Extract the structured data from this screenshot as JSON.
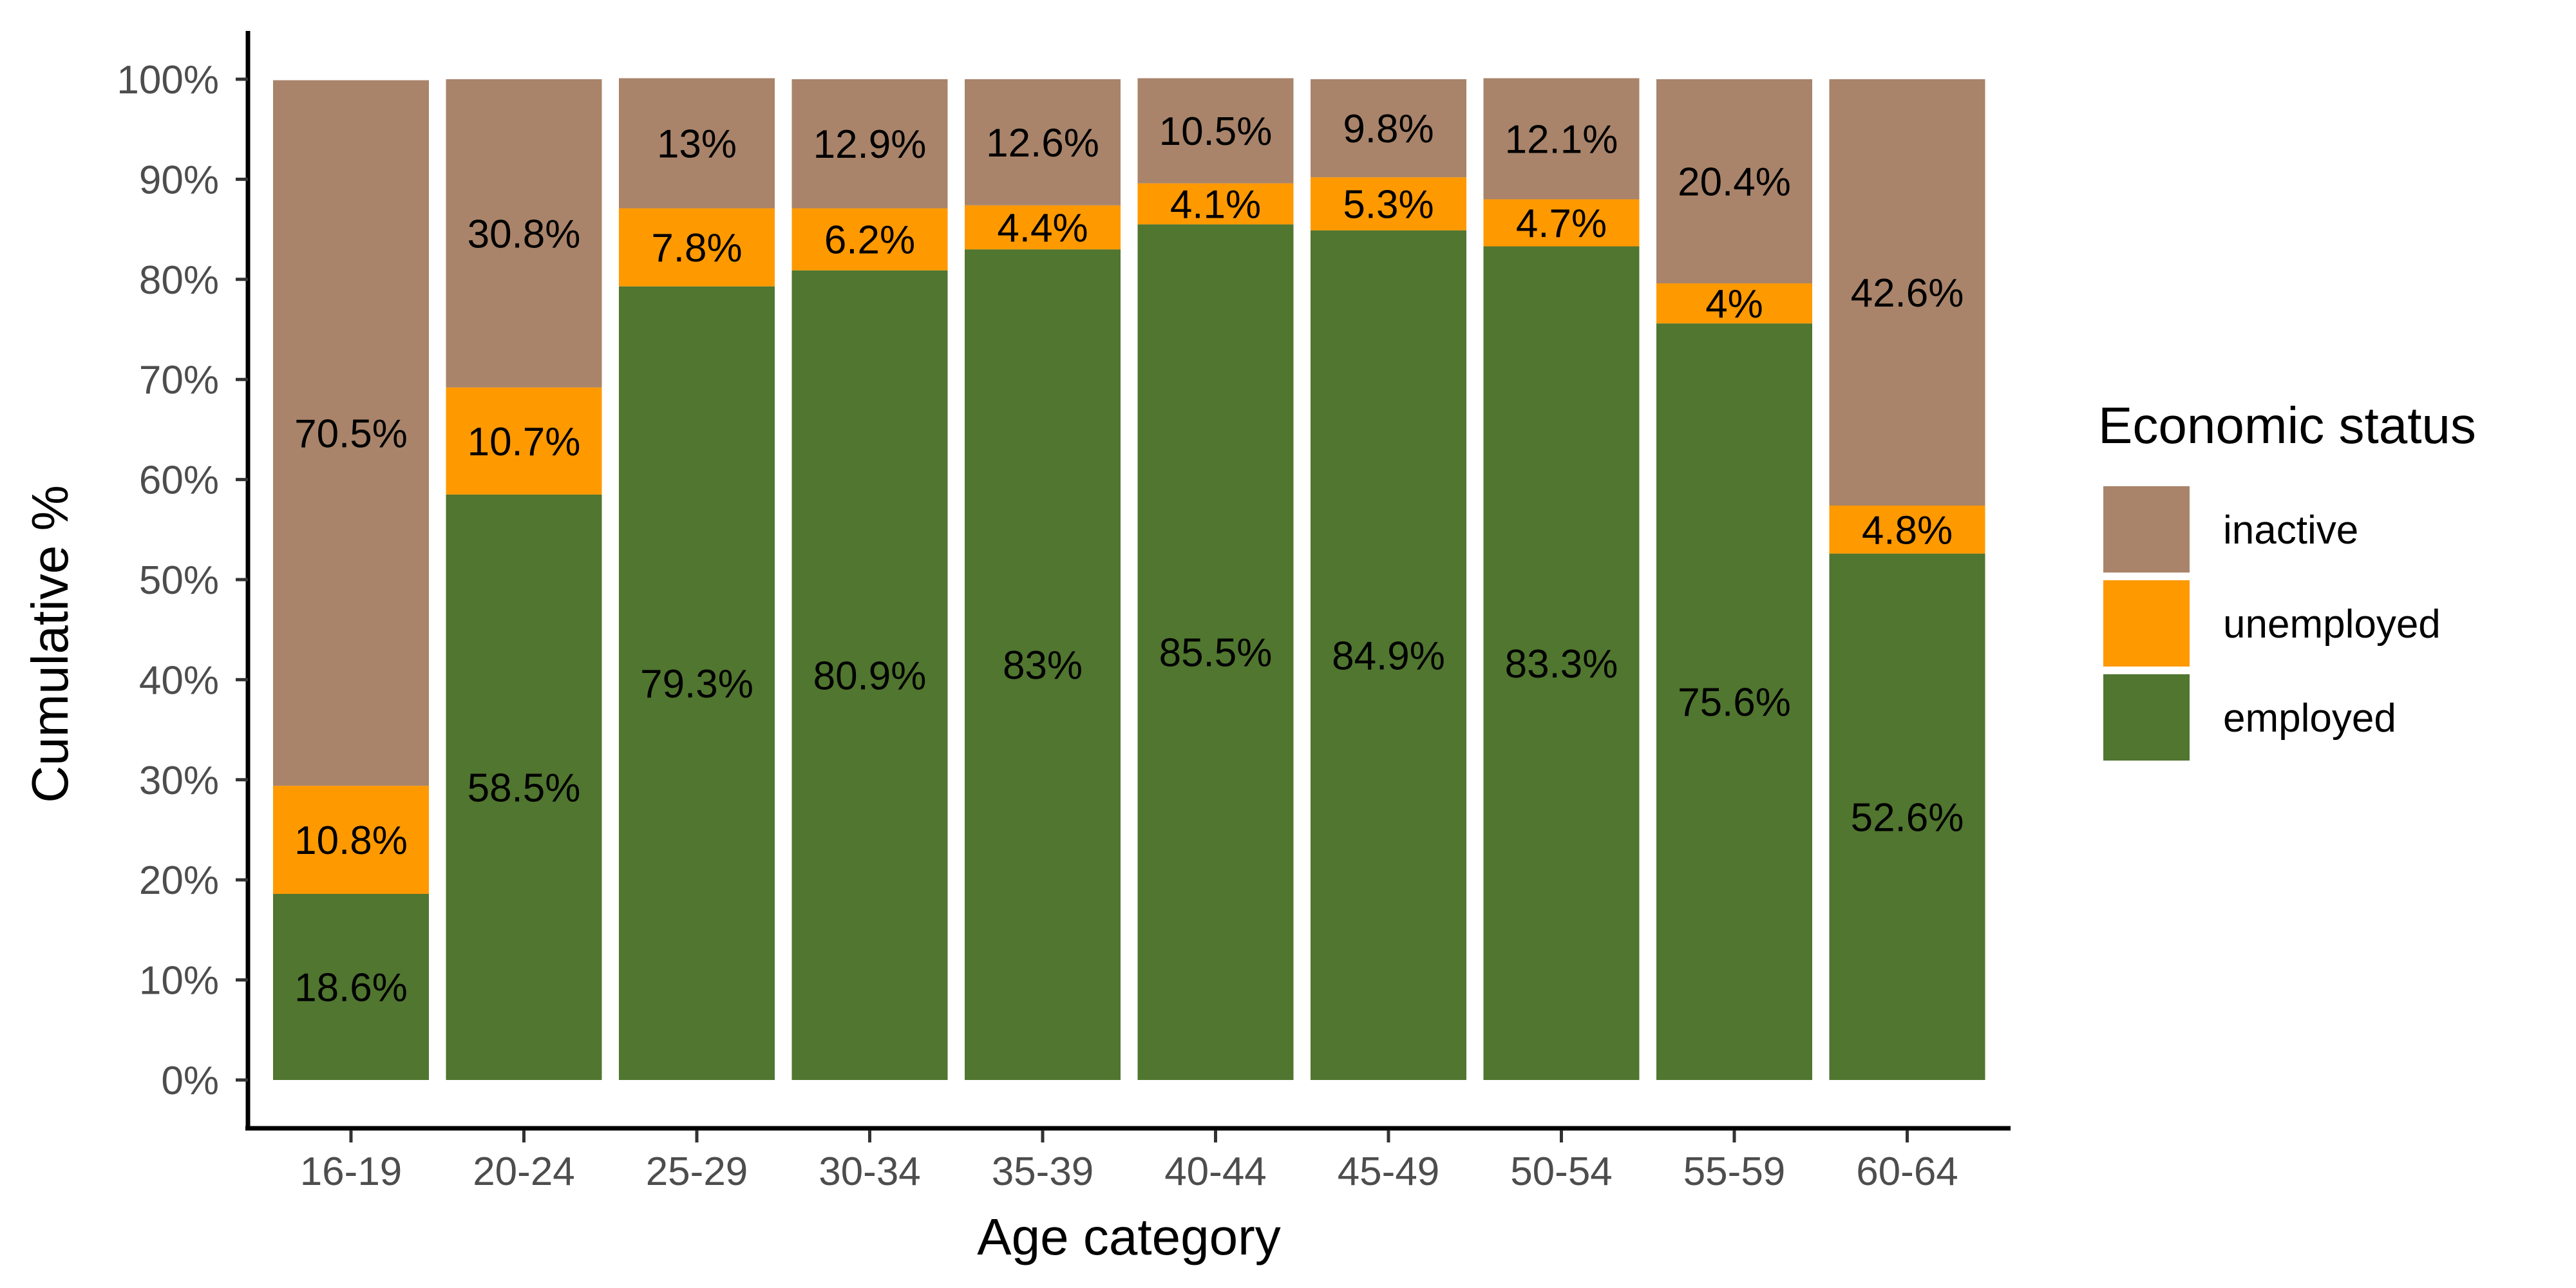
{
  "chart_data": {
    "type": "bar",
    "stacked": true,
    "percent": true,
    "categories": [
      "16-19",
      "20-24",
      "25-29",
      "30-34",
      "35-39",
      "40-44",
      "45-49",
      "50-54",
      "55-59",
      "60-64"
    ],
    "series": [
      {
        "name": "employed",
        "color": "#50762f",
        "values": [
          18.6,
          58.5,
          79.3,
          80.9,
          83,
          85.5,
          84.9,
          83.3,
          75.6,
          52.6
        ],
        "labels": [
          "18.6%",
          "58.5%",
          "79.3%",
          "80.9%",
          "83%",
          "85.5%",
          "84.9%",
          "83.3%",
          "75.6%",
          "52.6%"
        ]
      },
      {
        "name": "unemployed",
        "color": "#ff9900",
        "values": [
          10.8,
          10.7,
          7.8,
          6.2,
          4.4,
          4.1,
          5.3,
          4.7,
          4,
          4.8
        ],
        "labels": [
          "10.8%",
          "10.7%",
          "7.8%",
          "6.2%",
          "4.4%",
          "4.1%",
          "5.3%",
          "4.7%",
          "4%",
          "4.8%"
        ]
      },
      {
        "name": "inactive",
        "color": "#a9846a",
        "values": [
          70.5,
          30.8,
          13,
          12.9,
          12.6,
          10.5,
          9.8,
          12.1,
          20.4,
          42.6
        ],
        "labels": [
          "70.5%",
          "30.8%",
          "13%",
          "12.9%",
          "12.6%",
          "10.5%",
          "9.8%",
          "12.1%",
          "20.4%",
          "42.6%"
        ]
      }
    ],
    "legend_order": [
      "inactive",
      "unemployed",
      "employed"
    ],
    "title": "",
    "xlabel": "Age category",
    "ylabel": "Cumulative %",
    "ylim": [
      0,
      100
    ],
    "yticks": [
      0,
      10,
      20,
      30,
      40,
      50,
      60,
      70,
      80,
      90,
      100
    ],
    "ytick_labels": [
      "0%",
      "10%",
      "20%",
      "30%",
      "40%",
      "50%",
      "60%",
      "70%",
      "80%",
      "90%",
      "100%"
    ],
    "legend_title": "Economic status",
    "legend_position": "right",
    "grid": false
  }
}
